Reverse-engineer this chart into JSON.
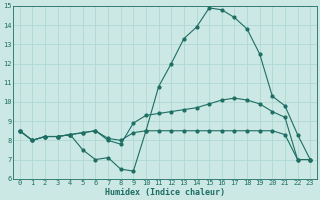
{
  "xlabel": "Humidex (Indice chaleur)",
  "background_color": "#cbe8e4",
  "grid_color": "#b0d8d4",
  "line_color": "#1e6e64",
  "x": [
    0,
    1,
    2,
    3,
    4,
    5,
    6,
    7,
    8,
    9,
    10,
    11,
    12,
    13,
    14,
    15,
    16,
    17,
    18,
    19,
    20,
    21,
    22,
    23
  ],
  "line1": [
    8.5,
    8.0,
    8.2,
    8.2,
    8.3,
    7.5,
    7.0,
    7.1,
    6.5,
    6.4,
    8.5,
    10.8,
    12.0,
    13.3,
    13.9,
    14.9,
    14.8,
    14.4,
    13.8,
    12.5,
    10.3,
    9.8,
    8.3,
    7.0
  ],
  "line2": [
    8.5,
    8.0,
    8.2,
    8.2,
    8.3,
    8.4,
    8.5,
    8.0,
    7.8,
    8.9,
    9.3,
    9.4,
    9.5,
    9.6,
    9.7,
    9.9,
    10.1,
    10.2,
    10.1,
    9.9,
    9.5,
    9.2,
    7.0,
    7.0
  ],
  "line3": [
    8.5,
    8.0,
    8.2,
    8.2,
    8.3,
    8.4,
    8.5,
    8.1,
    8.0,
    8.4,
    8.5,
    8.5,
    8.5,
    8.5,
    8.5,
    8.5,
    8.5,
    8.5,
    8.5,
    8.5,
    8.5,
    8.3,
    7.0,
    7.0
  ],
  "ylim": [
    6,
    15
  ],
  "xlim": [
    -0.5,
    23.5
  ],
  "yticks": [
    6,
    7,
    8,
    9,
    10,
    11,
    12,
    13,
    14,
    15
  ],
  "xticks": [
    0,
    1,
    2,
    3,
    4,
    5,
    6,
    7,
    8,
    9,
    10,
    11,
    12,
    13,
    14,
    15,
    16,
    17,
    18,
    19,
    20,
    21,
    22,
    23
  ],
  "tick_fontsize": 5.0,
  "xlabel_fontsize": 6.0,
  "linewidth": 0.8,
  "markersize": 2.0
}
